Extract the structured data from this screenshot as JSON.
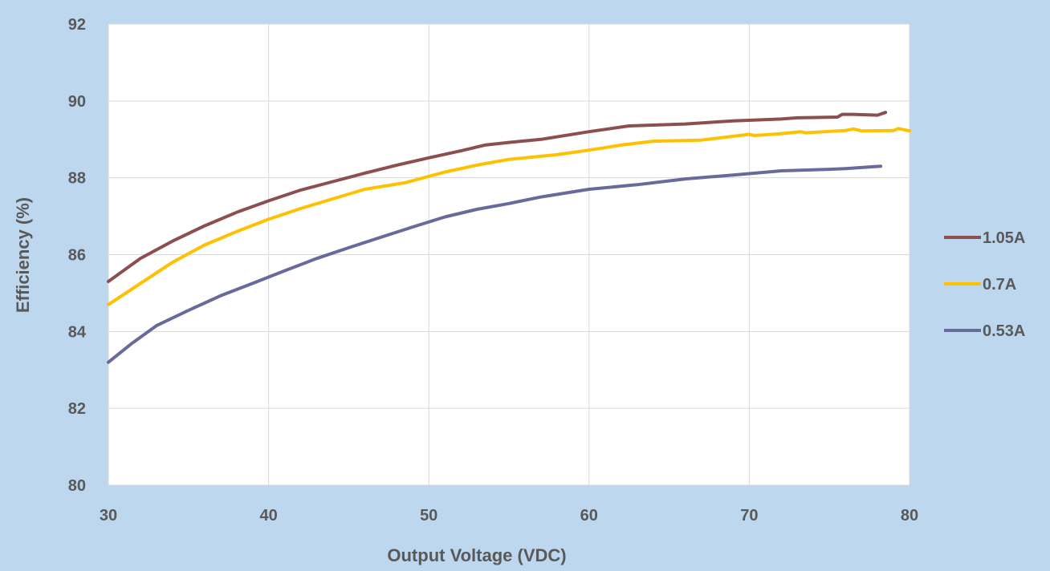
{
  "chart_data": {
    "type": "line",
    "title": "",
    "xlabel": "Output Voltage (VDC)",
    "ylabel": "Efficiency (%)",
    "xlim": [
      30,
      80
    ],
    "ylim": [
      80,
      92
    ],
    "xticks": [
      30,
      40,
      50,
      60,
      70,
      80
    ],
    "yticks": [
      80,
      82,
      84,
      86,
      88,
      90,
      92
    ],
    "grid": true,
    "legend_position": "right",
    "series": [
      {
        "name": "1.05A",
        "color": "#8b4f4f",
        "x": [
          30,
          32,
          34,
          36,
          38,
          40,
          42,
          44,
          46,
          48,
          50,
          52,
          53.5,
          55,
          57,
          60,
          62.5,
          66,
          69,
          72,
          73,
          75.5,
          75.8,
          76.5,
          78,
          78.5
        ],
        "y": [
          85.3,
          85.9,
          86.35,
          86.75,
          87.1,
          87.4,
          87.68,
          87.9,
          88.12,
          88.33,
          88.52,
          88.7,
          88.85,
          88.92,
          89.0,
          89.2,
          89.35,
          89.4,
          89.48,
          89.53,
          89.56,
          89.58,
          89.65,
          89.65,
          89.63,
          89.7
        ]
      },
      {
        "name": "0.7A",
        "color": "#ffc000",
        "x": [
          30,
          32,
          34,
          36,
          38,
          40,
          42,
          44,
          46,
          48.5,
          51,
          53,
          55,
          58,
          60,
          62,
          64,
          67,
          70,
          70.3,
          72,
          73.2,
          73.5,
          76,
          76.5,
          77,
          79,
          79.3,
          80
        ],
        "y": [
          84.7,
          85.25,
          85.8,
          86.25,
          86.6,
          86.92,
          87.2,
          87.45,
          87.7,
          87.87,
          88.15,
          88.33,
          88.48,
          88.6,
          88.72,
          88.85,
          88.95,
          88.98,
          89.13,
          89.1,
          89.15,
          89.2,
          89.17,
          89.23,
          89.27,
          89.22,
          89.23,
          89.28,
          89.22
        ]
      },
      {
        "name": "0.53A",
        "color": "#686a9c",
        "x": [
          30,
          31.5,
          33,
          35,
          37,
          39,
          41,
          43,
          45,
          47,
          49,
          51,
          53,
          55,
          57,
          60,
          63,
          66,
          69,
          72,
          75,
          76,
          78.2
        ],
        "y": [
          83.2,
          83.7,
          84.15,
          84.55,
          84.93,
          85.25,
          85.58,
          85.9,
          86.18,
          86.45,
          86.72,
          86.98,
          87.18,
          87.33,
          87.5,
          87.7,
          87.82,
          87.97,
          88.07,
          88.18,
          88.22,
          88.24,
          88.3
        ]
      }
    ]
  }
}
